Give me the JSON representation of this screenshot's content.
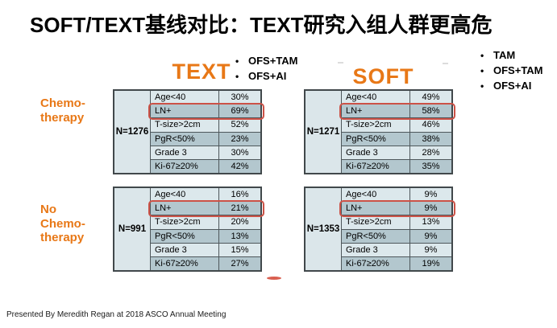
{
  "title": "SOFT/TEXT基线对比：TEXT研究入组人群更高危",
  "footer": "Presented By Meredith Regan at 2018 ASCO Annual Meeting",
  "colors": {
    "accent_orange": "#e87817",
    "highlight_red": "#cc5247",
    "row_light": "#dce8ec",
    "row_dark": "#b3c7ce",
    "table_border": "#4e575b"
  },
  "studies": {
    "text": {
      "name": "TEXT",
      "treatments": [
        "OFS+TAM",
        "OFS+AI"
      ]
    },
    "soft": {
      "name": "SOFT",
      "treatments": [
        "TAM",
        "OFS+TAM",
        "OFS+AI"
      ]
    }
  },
  "groups": {
    "chemo": {
      "label": "Chemo-therapy",
      "lines": [
        "Chemo-",
        "therapy"
      ]
    },
    "no_chemo": {
      "label": "No Chemo-therapy",
      "lines": [
        "No",
        "Chemo-",
        "therapy"
      ]
    }
  },
  "tables": [
    {
      "study": "TEXT",
      "group": "Chemotherapy",
      "n": "N=1276",
      "rows": [
        {
          "label": "Age<40",
          "value": "30%",
          "highlight": false
        },
        {
          "label": "LN+",
          "value": "69%",
          "highlight": true
        },
        {
          "label": "T-size>2cm",
          "value": "52%",
          "highlight": false
        },
        {
          "label": "PgR<50%",
          "value": "23%",
          "highlight": false
        },
        {
          "label": "Grade 3",
          "value": "30%",
          "highlight": false
        },
        {
          "label": "Ki-67≥20%",
          "value": "42%",
          "highlight": false
        }
      ]
    },
    {
      "study": "SOFT",
      "group": "Chemotherapy",
      "n": "N=1271",
      "rows": [
        {
          "label": "Age<40",
          "value": "49%",
          "highlight": false
        },
        {
          "label": "LN+",
          "value": "58%",
          "highlight": true
        },
        {
          "label": "T-size>2cm",
          "value": "46%",
          "highlight": false
        },
        {
          "label": "PgR<50%",
          "value": "38%",
          "highlight": false
        },
        {
          "label": "Grade 3",
          "value": "28%",
          "highlight": false
        },
        {
          "label": "Ki-67≥20%",
          "value": "35%",
          "highlight": false
        }
      ]
    },
    {
      "study": "TEXT",
      "group": "No Chemotherapy",
      "n": "N=991",
      "rows": [
        {
          "label": "Age<40",
          "value": "16%",
          "highlight": false
        },
        {
          "label": "LN+",
          "value": "21%",
          "highlight": true
        },
        {
          "label": "T-size>2cm",
          "value": "20%",
          "highlight": false
        },
        {
          "label": "PgR<50%",
          "value": "13%",
          "highlight": false
        },
        {
          "label": "Grade 3",
          "value": "15%",
          "highlight": false
        },
        {
          "label": "Ki-67≥20%",
          "value": "27%",
          "highlight": false
        }
      ]
    },
    {
      "study": "SOFT",
      "group": "No Chemotherapy",
      "n": "N=1353",
      "rows": [
        {
          "label": "Age<40",
          "value": "9%",
          "highlight": false
        },
        {
          "label": "LN+",
          "value": "9%",
          "highlight": true
        },
        {
          "label": "T-size>2cm",
          "value": "13%",
          "highlight": false
        },
        {
          "label": "PgR<50%",
          "value": "9%",
          "highlight": false
        },
        {
          "label": "Grade 3",
          "value": "9%",
          "highlight": false
        },
        {
          "label": "Ki-67≥20%",
          "value": "19%",
          "highlight": false
        }
      ]
    }
  ]
}
